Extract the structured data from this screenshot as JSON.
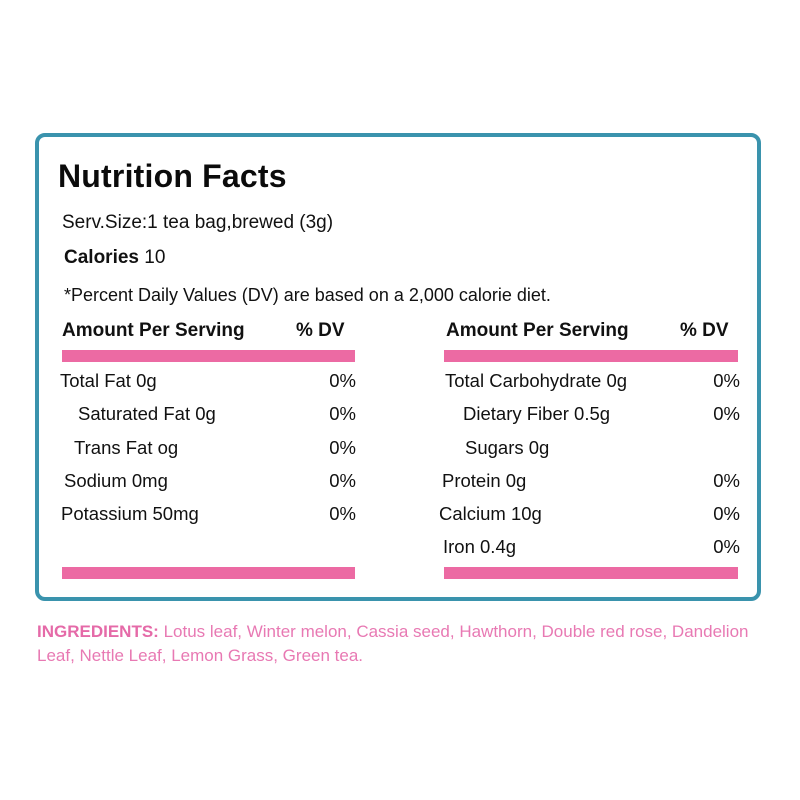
{
  "panel": {
    "title": "Nutrition Facts",
    "serving_size": "Serv.Size:1 tea bag,brewed (3g)",
    "calories_label": "Calories",
    "calories_value": "10",
    "dv_note": "*Percent Daily Values (DV) are based on a 2,000 calorie diet.",
    "columns": [
      {
        "header_amount": "Amount Per Serving",
        "header_dv": "% DV",
        "rows": [
          {
            "label": "Total Fat 0g",
            "dv": "0%"
          },
          {
            "label": "Saturated Fat 0g",
            "dv": "0%"
          },
          {
            "label": "Trans Fat og",
            "dv": "0%"
          },
          {
            "label": "Sodium 0mg",
            "dv": "0%"
          },
          {
            "label": "Potassium 50mg",
            "dv": "0%"
          }
        ]
      },
      {
        "header_amount": "Amount Per Serving",
        "header_dv": "% DV",
        "rows": [
          {
            "label": "Total Carbohydrate 0g",
            "dv": "0%"
          },
          {
            "label": "Dietary Fiber 0.5g",
            "dv": "0%"
          },
          {
            "label": "Sugars 0g",
            "dv": ""
          },
          {
            "label": "Protein 0g",
            "dv": "0%"
          },
          {
            "label": "Calcium 10g",
            "dv": "0%"
          },
          {
            "label": "Iron 0.4g",
            "dv": "0%"
          }
        ]
      }
    ]
  },
  "ingredients": {
    "label": "INGREDIENTS:",
    "text": " Lotus leaf, Winter melon, Cassia seed, Hawthorn, Double red rose, Dandelion Leaf, Nettle Leaf, Lemon Grass, Green tea."
  },
  "colors": {
    "border": "#3a93ad",
    "accent_bar": "#ec6aa3",
    "ingredients_text": "#e879b3"
  }
}
